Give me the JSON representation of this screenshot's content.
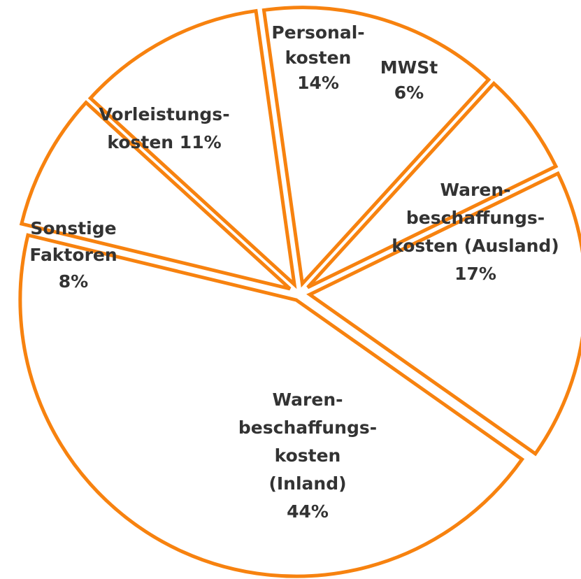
{
  "chart_data": {
    "type": "pie",
    "categories": [
      [
        "Personal-",
        "kosten"
      ],
      [
        "MWSt"
      ],
      [
        "Waren-",
        "beschaffungs-",
        "kosten (Ausland)"
      ],
      [
        "Waren-",
        "beschaffungs-",
        "kosten",
        "(Inland)"
      ],
      [
        "Sonstige",
        "Faktoren"
      ],
      [
        "Vorleistungs-",
        "kosten"
      ]
    ],
    "values": [
      14,
      6,
      17,
      44,
      8,
      11
    ],
    "value_labels": [
      "14%",
      "6%",
      "17%",
      "44%",
      "8%",
      "11%"
    ],
    "color": "#f7820f"
  }
}
